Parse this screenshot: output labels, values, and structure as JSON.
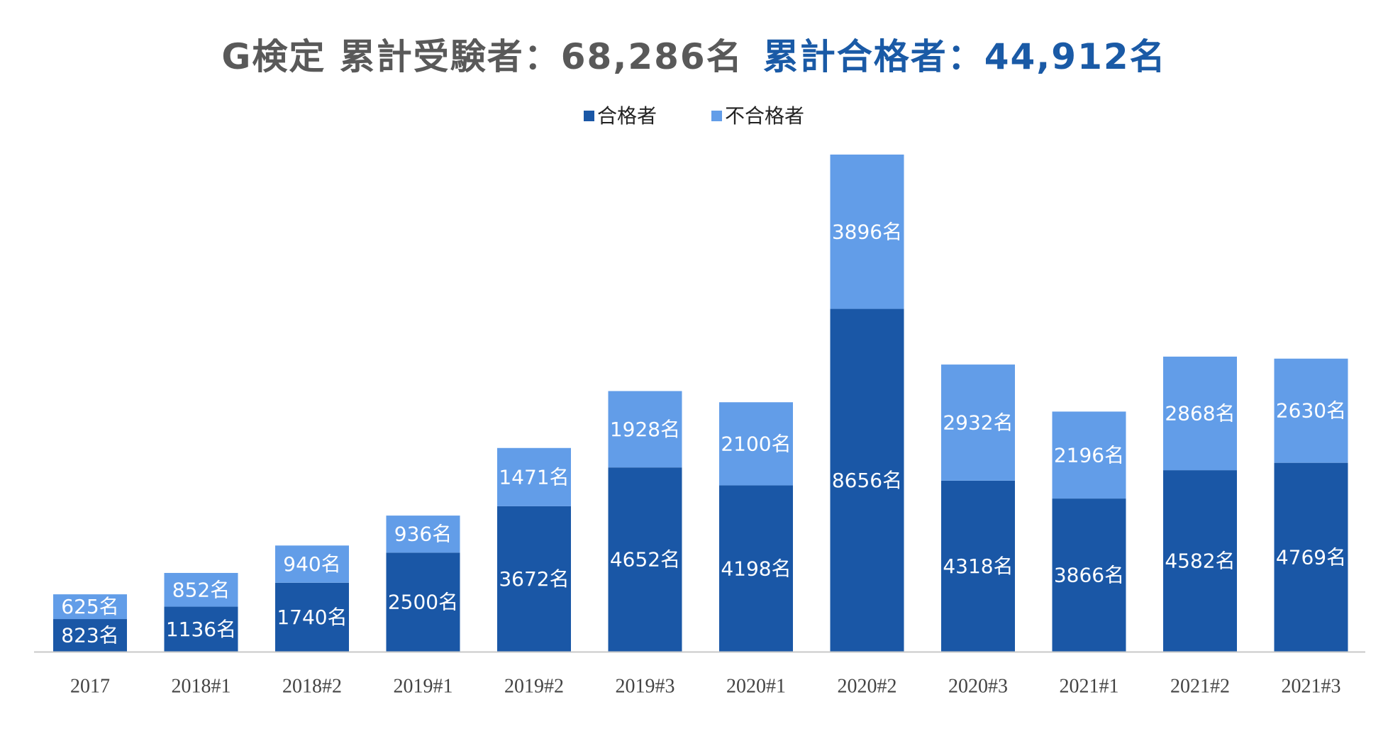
{
  "title": {
    "main": "G検定 累計受験者：68,286名",
    "accent": "累計合格者：44,912名"
  },
  "colors": {
    "pass": "#1a57a6",
    "fail": "#629de8",
    "accent_title": "#1a5aa6",
    "title_gray": "#595959"
  },
  "legend": {
    "pass_label": "合格者",
    "fail_label": "不合格者"
  },
  "chart_data": {
    "type": "bar",
    "stacked": true,
    "categories": [
      "2017",
      "2018#1",
      "2018#2",
      "2019#1",
      "2019#2",
      "2019#3",
      "2020#1",
      "2020#2",
      "2020#3",
      "2021#1",
      "2021#2",
      "2021#3"
    ],
    "series": [
      {
        "name": "合格者",
        "values": [
          823,
          1136,
          1740,
          2500,
          3672,
          4652,
          4198,
          8656,
          4318,
          3866,
          4582,
          4769
        ]
      },
      {
        "name": "不合格者",
        "values": [
          625,
          852,
          940,
          936,
          1471,
          1928,
          2100,
          3896,
          2932,
          2196,
          2868,
          2630
        ]
      }
    ],
    "data_label_suffix": "名",
    "legend_position": "top",
    "y_axis_visible": false,
    "grid": false
  }
}
